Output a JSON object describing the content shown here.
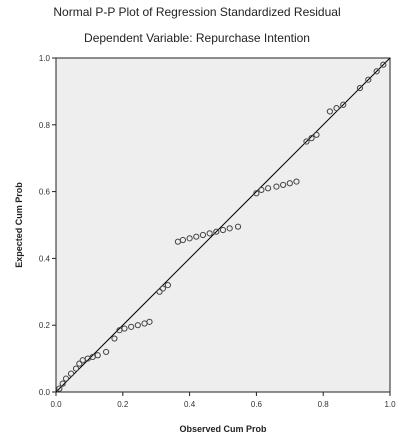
{
  "chart_data": {
    "type": "scatter",
    "title": "Normal P-P Plot of Regression Standardized Residual",
    "subtitle": "Dependent Variable: Repurchase Intention",
    "xlabel": "Observed Cum Prob",
    "ylabel": "Expected Cum Prob",
    "xlim": [
      0,
      1
    ],
    "ylim": [
      0,
      1
    ],
    "x_ticks": [
      "0.0",
      "0.2",
      "0.4",
      "0.6",
      "0.8",
      "1.0"
    ],
    "y_ticks": [
      "0.0",
      "0.2",
      "0.4",
      "0.6",
      "0.8",
      "1.0"
    ],
    "reference_line": {
      "from": [
        0,
        0
      ],
      "to": [
        1,
        1
      ]
    },
    "grid": false,
    "colors": {
      "plot_bg": "#eeeeee",
      "points": "#444444",
      "line": "#000000"
    },
    "points": [
      {
        "x": 0.01,
        "y": 0.01
      },
      {
        "x": 0.02,
        "y": 0.025
      },
      {
        "x": 0.03,
        "y": 0.04
      },
      {
        "x": 0.045,
        "y": 0.055
      },
      {
        "x": 0.06,
        "y": 0.07
      },
      {
        "x": 0.07,
        "y": 0.085
      },
      {
        "x": 0.08,
        "y": 0.095
      },
      {
        "x": 0.095,
        "y": 0.1
      },
      {
        "x": 0.11,
        "y": 0.105
      },
      {
        "x": 0.125,
        "y": 0.11
      },
      {
        "x": 0.15,
        "y": 0.12
      },
      {
        "x": 0.175,
        "y": 0.16
      },
      {
        "x": 0.19,
        "y": 0.185
      },
      {
        "x": 0.205,
        "y": 0.19
      },
      {
        "x": 0.225,
        "y": 0.195
      },
      {
        "x": 0.245,
        "y": 0.2
      },
      {
        "x": 0.265,
        "y": 0.205
      },
      {
        "x": 0.28,
        "y": 0.21
      },
      {
        "x": 0.31,
        "y": 0.3
      },
      {
        "x": 0.32,
        "y": 0.31
      },
      {
        "x": 0.335,
        "y": 0.32
      },
      {
        "x": 0.365,
        "y": 0.45
      },
      {
        "x": 0.38,
        "y": 0.455
      },
      {
        "x": 0.4,
        "y": 0.46
      },
      {
        "x": 0.42,
        "y": 0.465
      },
      {
        "x": 0.44,
        "y": 0.47
      },
      {
        "x": 0.46,
        "y": 0.475
      },
      {
        "x": 0.48,
        "y": 0.48
      },
      {
        "x": 0.5,
        "y": 0.485
      },
      {
        "x": 0.52,
        "y": 0.49
      },
      {
        "x": 0.545,
        "y": 0.495
      },
      {
        "x": 0.6,
        "y": 0.595
      },
      {
        "x": 0.615,
        "y": 0.605
      },
      {
        "x": 0.635,
        "y": 0.61
      },
      {
        "x": 0.66,
        "y": 0.615
      },
      {
        "x": 0.68,
        "y": 0.62
      },
      {
        "x": 0.7,
        "y": 0.625
      },
      {
        "x": 0.72,
        "y": 0.63
      },
      {
        "x": 0.75,
        "y": 0.75
      },
      {
        "x": 0.765,
        "y": 0.76
      },
      {
        "x": 0.78,
        "y": 0.77
      },
      {
        "x": 0.82,
        "y": 0.84
      },
      {
        "x": 0.84,
        "y": 0.85
      },
      {
        "x": 0.86,
        "y": 0.86
      },
      {
        "x": 0.91,
        "y": 0.91
      },
      {
        "x": 0.935,
        "y": 0.935
      },
      {
        "x": 0.96,
        "y": 0.96
      },
      {
        "x": 0.98,
        "y": 0.98
      }
    ]
  }
}
